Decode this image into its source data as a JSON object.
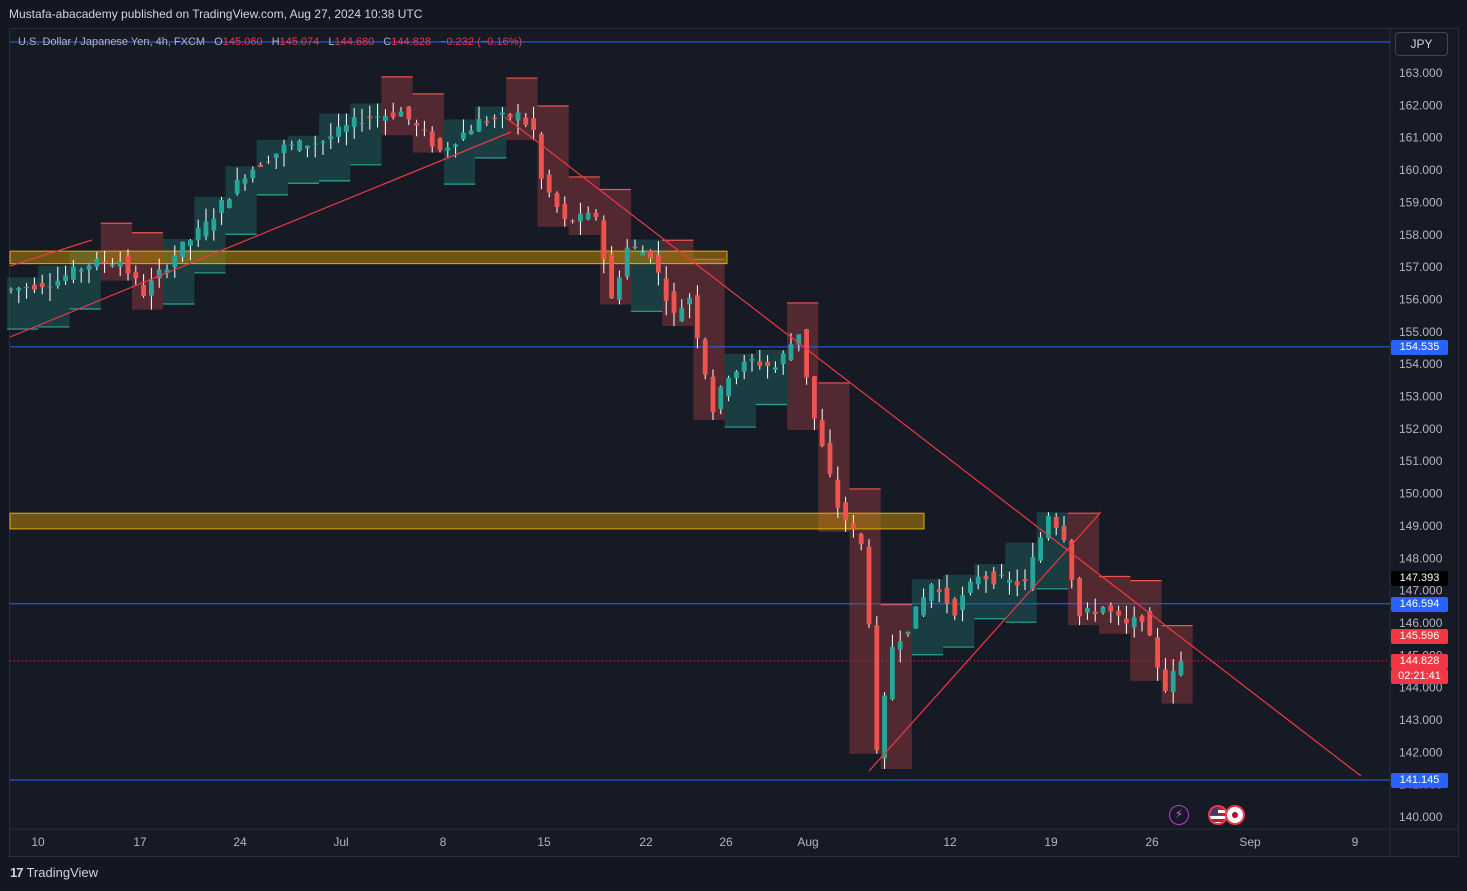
{
  "publisher_line": "Mustafa-abacademy published on TradingView.com, Aug 27, 2024 10:38 UTC",
  "legend": {
    "symbol": "U.S. Dollar / Japanese Yen, 4h, FXCM",
    "open_label": "O",
    "open": "145.060",
    "high_label": "H",
    "high": "145.074",
    "low_label": "L",
    "low": "144.680",
    "close_label": "C",
    "close": "144.828",
    "change": "−0.232 (−0.16%)"
  },
  "currency_button": "JPY",
  "footer_brand": "TradingView",
  "icons": {
    "logo": "tradingview-logo-icon",
    "lightning": "lightning-icon",
    "flags": "us-jp-flags-icon"
  },
  "colors": {
    "background": "#161a25",
    "bull": "#26a69a",
    "bear": "#ef5350",
    "blue_line": "#2962ff",
    "trend_line": "#f23645",
    "zone": "#b8860b"
  },
  "chart_data": {
    "type": "candlestick",
    "symbol": "USDJPY",
    "timeframe": "4h",
    "y_axis": {
      "ylim": [
        139.8,
        163.4
      ],
      "ticks": [
        "163.000",
        "162.000",
        "161.000",
        "160.000",
        "159.000",
        "158.000",
        "157.000",
        "156.000",
        "155.000",
        "154.000",
        "153.000",
        "152.000",
        "151.000",
        "150.000",
        "149.000",
        "148.000",
        "147.000",
        "146.000",
        "145.000",
        "144.000",
        "143.000",
        "142.000",
        "141.000",
        "140.000"
      ]
    },
    "x_axis": {
      "ticks": [
        "10",
        "17",
        "24",
        "Jul",
        "8",
        "15",
        "22",
        "26",
        "Aug",
        "12",
        "19",
        "26",
        "Sep",
        "9"
      ]
    },
    "price_path": [
      [
        0,
        156.3
      ],
      [
        6,
        156.6
      ],
      [
        10,
        157.1
      ],
      [
        14,
        157.2
      ],
      [
        17,
        156.2
      ],
      [
        21,
        157.4
      ],
      [
        25,
        158.3
      ],
      [
        30,
        159.9
      ],
      [
        35,
        160.7
      ],
      [
        40,
        160.9
      ],
      [
        45,
        161.6
      ],
      [
        50,
        161.8
      ],
      [
        55,
        160.6
      ],
      [
        60,
        161.5
      ],
      [
        65,
        161.7
      ],
      [
        67,
        161.2
      ],
      [
        68,
        159.7
      ],
      [
        71,
        158.4
      ],
      [
        75,
        158.6
      ],
      [
        77,
        156.0
      ],
      [
        79,
        157.6
      ],
      [
        82,
        157.4
      ],
      [
        85,
        155.5
      ],
      [
        87,
        156.1
      ],
      [
        90,
        152.6
      ],
      [
        92,
        153.7
      ],
      [
        95,
        154.1
      ],
      [
        98,
        153.9
      ],
      [
        101,
        155.0
      ],
      [
        103,
        152.3
      ],
      [
        106,
        149.6
      ],
      [
        109,
        148.4
      ],
      [
        110,
        146.1
      ],
      [
        111,
        141.9
      ],
      [
        113,
        145.3
      ],
      [
        115,
        145.9
      ],
      [
        118,
        147.2
      ],
      [
        121,
        146.4
      ],
      [
        124,
        147.5
      ],
      [
        127,
        147.3
      ],
      [
        130,
        147.2
      ],
      [
        133,
        149.4
      ],
      [
        135,
        148.7
      ],
      [
        137,
        146.2
      ],
      [
        140,
        146.5
      ],
      [
        143,
        145.9
      ],
      [
        145,
        146.2
      ],
      [
        147,
        144.7
      ],
      [
        148,
        144.0
      ],
      [
        150,
        144.8
      ]
    ],
    "blue_lines": [
      "154.535",
      "146.594",
      "141.145"
    ],
    "price_labels": {
      "blue_1": "154.535",
      "marked": "147.393",
      "blue_2": "146.594",
      "red": "145.596",
      "current": "144.828",
      "countdown": "02:21:41",
      "blue_3": "141.145"
    },
    "zones": [
      {
        "low": 157.2,
        "high": 157.4
      },
      {
        "low": 149.0,
        "high": 149.3
      }
    ],
    "trend_lines": 4
  }
}
